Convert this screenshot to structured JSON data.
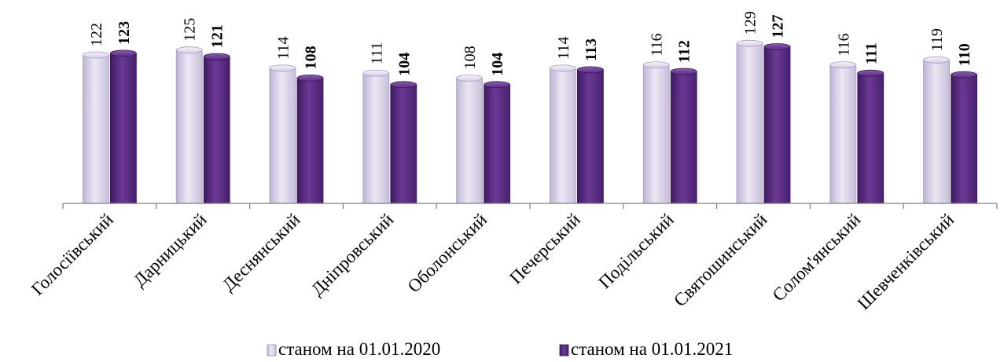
{
  "chart_data": {
    "type": "bar",
    "categories": [
      "Голосіївський",
      "Дарницький",
      "Деснянський",
      "Дніпровський",
      "Оболонський",
      "Печерський",
      "Подільський",
      "Святошинський",
      "Солом'янський",
      "Шевченківський"
    ],
    "series": [
      {
        "name": "станом на 01.01.2020",
        "values": [
          122,
          125,
          114,
          111,
          108,
          114,
          116,
          129,
          116,
          119
        ],
        "color": "#d9d1e8",
        "label_bold": false
      },
      {
        "name": "станом на 01.01.2021",
        "values": [
          123,
          121,
          108,
          104,
          104,
          113,
          112,
          127,
          111,
          110
        ],
        "color": "#5b2d82",
        "label_bold": true
      }
    ],
    "title": "",
    "xlabel": "",
    "ylabel": "",
    "ylim": [
      0,
      130
    ],
    "grid": false,
    "legend_position": "bottom"
  }
}
